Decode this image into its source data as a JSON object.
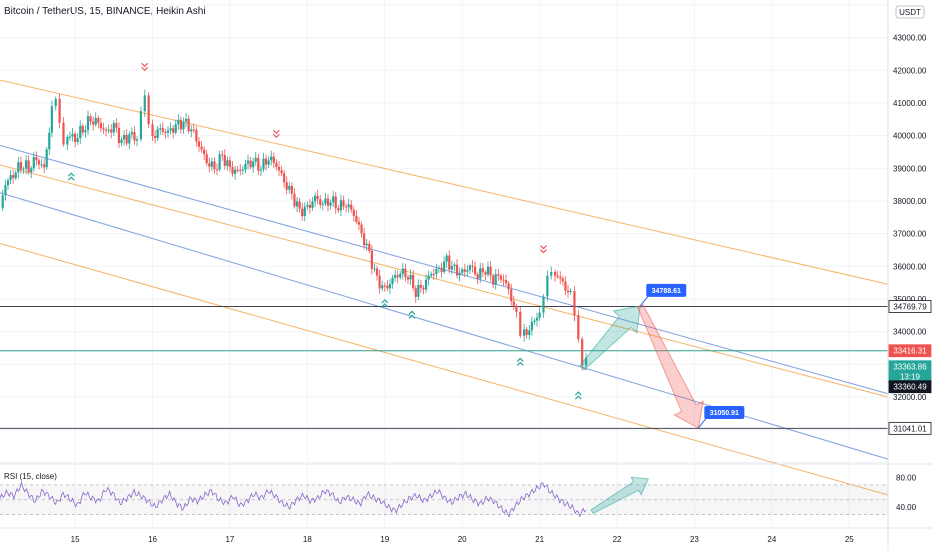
{
  "chart_data": {
    "type": "candlestick",
    "title": "Bitcoin / TetherUS, 15, BINANCE, Heikin Ashi",
    "currency": "USDT",
    "y_ticks": [
      30000,
      31000,
      32000,
      33000,
      34000,
      35000,
      36000,
      37000,
      38000,
      39000,
      40000,
      41000,
      42000,
      43000,
      44000
    ],
    "y_tick_labels": [
      "30000.00",
      "31000.00",
      "32000.00",
      "33000.00",
      "34000.00",
      "35000.00",
      "36000.00",
      "37000.00",
      "38000.00",
      "39000.00",
      "40000.00",
      "41000.00",
      "42000.00",
      "43000.00",
      "44000.00"
    ],
    "ylim": [
      29950,
      44150
    ],
    "x_ticks": [
      15,
      16,
      17,
      18,
      19,
      20,
      21,
      22,
      23,
      24,
      25
    ],
    "x_tick_labels": [
      "15",
      "16",
      "17",
      "18",
      "19",
      "20",
      "21",
      "22",
      "23",
      "24",
      "25"
    ],
    "xlim": [
      14.03,
      25.5
    ],
    "price_series": [
      [
        14.03,
        37700
      ],
      [
        14.1,
        38500
      ],
      [
        14.2,
        38800
      ],
      [
        14.3,
        39100
      ],
      [
        14.4,
        39000
      ],
      [
        14.5,
        39300
      ],
      [
        14.6,
        39000
      ],
      [
        14.7,
        40800
      ],
      [
        14.75,
        41000
      ],
      [
        14.8,
        40300
      ],
      [
        14.85,
        39700
      ],
      [
        14.9,
        40000
      ],
      [
        15.0,
        39900
      ],
      [
        15.1,
        40200
      ],
      [
        15.2,
        40500
      ],
      [
        15.3,
        40400
      ],
      [
        15.4,
        40100
      ],
      [
        15.5,
        40300
      ],
      [
        15.6,
        39800
      ],
      [
        15.7,
        40000
      ],
      [
        15.8,
        39900
      ],
      [
        15.85,
        40800
      ],
      [
        15.9,
        41300
      ],
      [
        15.95,
        40400
      ],
      [
        16.0,
        40000
      ],
      [
        16.1,
        40200
      ],
      [
        16.2,
        40100
      ],
      [
        16.3,
        40300
      ],
      [
        16.4,
        40400
      ],
      [
        16.5,
        40200
      ],
      [
        16.6,
        39700
      ],
      [
        16.7,
        39200
      ],
      [
        16.8,
        39000
      ],
      [
        16.9,
        39400
      ],
      [
        17.0,
        39000
      ],
      [
        17.1,
        38900
      ],
      [
        17.2,
        39100
      ],
      [
        17.3,
        39200
      ],
      [
        17.4,
        39000
      ],
      [
        17.5,
        39300
      ],
      [
        17.6,
        39100
      ],
      [
        17.7,
        38600
      ],
      [
        17.8,
        38200
      ],
      [
        17.9,
        37700
      ],
      [
        18.0,
        37800
      ],
      [
        18.1,
        38100
      ],
      [
        18.2,
        37900
      ],
      [
        18.3,
        38000
      ],
      [
        18.4,
        37800
      ],
      [
        18.5,
        37900
      ],
      [
        18.6,
        37600
      ],
      [
        18.7,
        37000
      ],
      [
        18.8,
        36400
      ],
      [
        18.9,
        35600
      ],
      [
        19.0,
        35300
      ],
      [
        19.1,
        35600
      ],
      [
        19.2,
        35800
      ],
      [
        19.3,
        35700
      ],
      [
        19.4,
        35200
      ],
      [
        19.5,
        35400
      ],
      [
        19.6,
        35800
      ],
      [
        19.7,
        35900
      ],
      [
        19.8,
        36200
      ],
      [
        19.9,
        35900
      ],
      [
        20.0,
        35800
      ],
      [
        20.1,
        36000
      ],
      [
        20.2,
        35700
      ],
      [
        20.3,
        35900
      ],
      [
        20.4,
        35600
      ],
      [
        20.5,
        35700
      ],
      [
        20.6,
        35300
      ],
      [
        20.7,
        34500
      ],
      [
        20.75,
        33700
      ],
      [
        20.8,
        33900
      ],
      [
        20.9,
        34200
      ],
      [
        21.0,
        34600
      ],
      [
        21.05,
        35200
      ],
      [
        21.1,
        35900
      ],
      [
        21.15,
        36000
      ],
      [
        21.2,
        35800
      ],
      [
        21.3,
        35500
      ],
      [
        21.4,
        35100
      ],
      [
        21.45,
        34300
      ],
      [
        21.5,
        33600
      ],
      [
        21.55,
        32900
      ],
      [
        21.6,
        33200
      ]
    ],
    "horizontal_levels": [
      {
        "value": 34769.79,
        "label": "34769.79"
      },
      {
        "value": 33416.31,
        "label": "33416.31"
      },
      {
        "value": 31041.01,
        "label": "31041.01"
      }
    ],
    "price_tags": [
      {
        "value": 34769.79,
        "label": "34769.79",
        "style": "white"
      },
      {
        "value": 33416.31,
        "label": "33416.31",
        "style": "red"
      },
      {
        "value": 33363.86,
        "label": "33363.86",
        "sub": "13:19",
        "style": "green"
      },
      {
        "value": 33360.49,
        "label": "33360.49",
        "style": "dark"
      },
      {
        "value": 31041.01,
        "label": "31041.01",
        "style": "white"
      }
    ],
    "callouts": [
      {
        "x": 22.3,
        "y": 34788.61,
        "label": "34788.61"
      },
      {
        "x": 23.05,
        "y": 31050.91,
        "label": "31050.91"
      }
    ],
    "channel_lines": [
      {
        "color": "orange",
        "x1": 14.03,
        "y1": 41700,
        "x2": 25.5,
        "y2": 35450
      },
      {
        "color": "blue",
        "x1": 14.03,
        "y1": 39700,
        "x2": 25.5,
        "y2": 32100
      },
      {
        "color": "orange",
        "x1": 14.03,
        "y1": 39100,
        "x2": 25.5,
        "y2": 32000
      },
      {
        "color": "blue",
        "x1": 14.03,
        "y1": 38250,
        "x2": 25.5,
        "y2": 30100
      },
      {
        "color": "orange",
        "x1": 14.03,
        "y1": 36700,
        "x2": 25.5,
        "y2": 29000
      }
    ],
    "rsi": {
      "label": "RSI (15, close)",
      "y_tick_labels": [
        "80.00",
        "40.00"
      ],
      "levels": [
        70,
        50,
        30
      ],
      "values": [
        52,
        60,
        55,
        70,
        58,
        48,
        62,
        55,
        45,
        58,
        50,
        42,
        60,
        52,
        48,
        65,
        58,
        45,
        52,
        60,
        55,
        48,
        40,
        50,
        58,
        45,
        38,
        52,
        48,
        56,
        62,
        50,
        45,
        55,
        42,
        48,
        58,
        52,
        62,
        55,
        45,
        40,
        50,
        56,
        48,
        52,
        62,
        58,
        46,
        54,
        50,
        44,
        58,
        52,
        48,
        40,
        35,
        44,
        52,
        56,
        48,
        55,
        62,
        52,
        46,
        54,
        58,
        50,
        44,
        52,
        48,
        38,
        30,
        42,
        52,
        58,
        65,
        72,
        60,
        52,
        45,
        40,
        30,
        38
      ]
    },
    "arrows": [
      {
        "color": "green",
        "from": [
          21.55,
          32900
        ],
        "to": [
          22.3,
          34788.61
        ]
      },
      {
        "color": "red",
        "from": [
          22.3,
          34788.61
        ],
        "to": [
          23.05,
          31050.91
        ]
      },
      {
        "color": "green",
        "panel": "rsi"
      }
    ]
  }
}
